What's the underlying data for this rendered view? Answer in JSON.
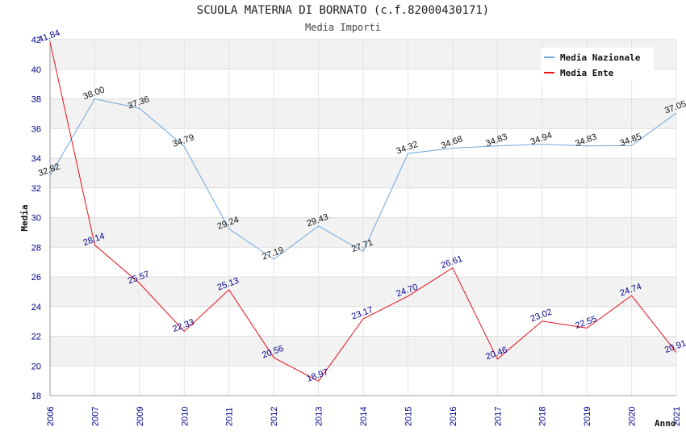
{
  "chart_data": {
    "type": "line",
    "title": "SCUOLA MATERNA DI BORNATO (c.f.82000430171)",
    "subtitle": "Media Importi",
    "xlabel": "Anno",
    "ylabel": "Media",
    "categories": [
      "2006",
      "2007",
      "2009",
      "2010",
      "2011",
      "2012",
      "2013",
      "2014",
      "2015",
      "2016",
      "2017",
      "2018",
      "2019",
      "2020",
      "2021"
    ],
    "ylim": [
      18,
      42
    ],
    "yticks": [
      18,
      20,
      22,
      24,
      26,
      28,
      30,
      32,
      34,
      36,
      38,
      40,
      42
    ],
    "grid": true,
    "legend_position": "top-right",
    "series": [
      {
        "name": "Media Nazionale",
        "color": "#6fa8dc",
        "values": [
          32.82,
          38.0,
          37.36,
          34.79,
          29.24,
          27.19,
          29.43,
          27.71,
          34.32,
          34.68,
          34.83,
          34.94,
          34.83,
          34.85,
          37.05
        ],
        "labels": [
          "32.82",
          "38.00",
          "37.36",
          "34.79",
          "29.24",
          "27.19",
          "29.43",
          "27.71",
          "34.32",
          "34.68",
          "34.83",
          "34.94",
          "34.83",
          "34.85",
          "37.05"
        ]
      },
      {
        "name": "Media Ente",
        "color": "#e8101a",
        "values": [
          41.84,
          28.14,
          25.57,
          22.33,
          25.13,
          20.56,
          18.97,
          23.17,
          24.7,
          26.61,
          20.46,
          23.02,
          22.55,
          24.74,
          20.91
        ],
        "labels": [
          "41.84",
          "28.14",
          "25.57",
          "22.33",
          "25.13",
          "20.56",
          "18.97",
          "23.17",
          "24.70",
          "26.61",
          "20.46",
          "23.02",
          "22.55",
          "24.74",
          "20.91"
        ]
      }
    ]
  }
}
